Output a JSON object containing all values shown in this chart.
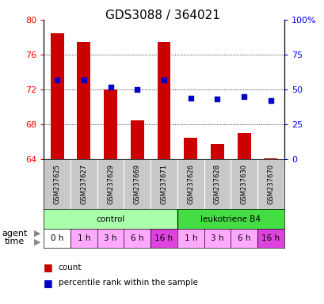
{
  "title": "GDS3088 / 364021",
  "samples": [
    "GSM237625",
    "GSM237627",
    "GSM237629",
    "GSM237669",
    "GSM237671",
    "GSM237626",
    "GSM237628",
    "GSM237630",
    "GSM237670"
  ],
  "counts": [
    78.5,
    77.5,
    72.0,
    68.5,
    77.5,
    66.5,
    65.8,
    67.0,
    64.1
  ],
  "percentiles": [
    57.0,
    57.0,
    52.0,
    50.0,
    57.0,
    44.0,
    43.5,
    45.0,
    42.0
  ],
  "bar_color": "#cc0000",
  "marker_color": "#0000cc",
  "ylim_left": [
    64,
    80
  ],
  "ylim_right": [
    0,
    100
  ],
  "yticks_left": [
    64,
    68,
    72,
    76,
    80
  ],
  "yticks_right": [
    0,
    25,
    50,
    75,
    100
  ],
  "ytick_labels_right": [
    "0",
    "25",
    "50",
    "75",
    "100%"
  ],
  "grid_lines": [
    68,
    72,
    76
  ],
  "agent_control": "control",
  "agent_leukotriene": "leukotriene B4",
  "time_labels": [
    "0 h",
    "1 h",
    "3 h",
    "6 h",
    "16 h",
    "1 h",
    "3 h",
    "6 h",
    "16 h"
  ],
  "time_colors_list": [
    "#ffffff",
    "#ffaaff",
    "#ffaaff",
    "#ffaaff",
    "#dd44dd",
    "#ffaaff",
    "#ffaaff",
    "#ffaaff",
    "#dd44dd"
  ],
  "control_color": "#aaffaa",
  "leukotriene_color": "#44dd44",
  "sample_bg_color": "#c8c8c8",
  "agent_label": "agent",
  "time_label": "time",
  "legend_count": "count",
  "legend_percentile": "percentile rank within the sample",
  "title_fontsize": 11,
  "tick_fontsize": 8,
  "sample_fontsize": 6,
  "label_fontsize": 8
}
